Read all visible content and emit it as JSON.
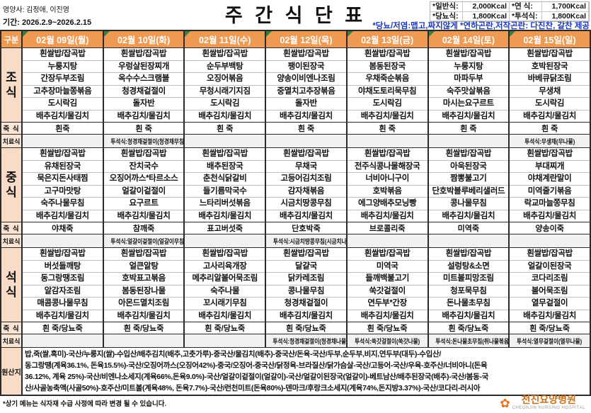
{
  "header": {
    "nutritionist": "영양사: 김정애, 이진영",
    "period": "기간: 2026.2.9~2026.2.15",
    "title": "주 간 식 단 표",
    "kcal": [
      {
        "label": "*일반식:",
        "value": "2,000Kcal"
      },
      {
        "label": "*연  식:",
        "value": "1,700Kcal"
      },
      {
        "label": "*당뇨식:",
        "value": "1,800Kcal"
      },
      {
        "label": "*투석식:",
        "value": "1,800Kcal"
      }
    ],
    "note": "*당뇨/저염:맵고,짜지않게  *연하곤란,저작곤란: 다진찬, 갈찬 제공"
  },
  "table": {
    "corner_label": "구분",
    "day_headers": [
      "02월 09일(월)",
      "02월 10일(화)",
      "02월 11일(수)",
      "02월 12일(목)",
      "02월 13일(금)",
      "02월 14일(토)",
      "02월 15일(일)"
    ],
    "section_labels": {
      "breakfast": "조식",
      "lunch": "중식",
      "dinner": "석식"
    },
    "porridge_label": "죽 식",
    "therapy_label": "치료식",
    "origin_label": "원산지"
  },
  "days": [
    {
      "breakfast": [
        "흰쌀밥/잡곡밥",
        "누룽지탕",
        "간장두부조림",
        "고추장마늘쫑볶음",
        "도시락김",
        "배추김치/물김치"
      ],
      "breakfast_porridge": "흰죽",
      "breakfast_therapy": "",
      "lunch": [
        "흰쌀밥/잡곡밥",
        "유채된장국",
        "묵은지돈사태찜",
        "고구마맛탕",
        "숙주나물무침",
        "배추김치/물김치"
      ],
      "lunch_porridge": "야채죽",
      "lunch_therapy": "",
      "dinner": [
        "흰쌀밥/잡곡밥",
        "버섯들깨탕",
        "동그랑땡조림",
        "알감자조림",
        "매콤콩나물무침",
        "배추김치/물김치"
      ],
      "dinner_porridge": "흰 죽/당뇨죽",
      "dinner_therapy": ""
    },
    {
      "breakfast": [
        "흰쌀밥/잡곡밥",
        "우렁살된장찌개",
        "옥수수스크램블",
        "청경채겉절이",
        "돌자반",
        "배추김치/물김치"
      ],
      "breakfast_porridge": "흰 죽",
      "breakfast_therapy": "투석식:청경채겉절이(청경채무침)",
      "lunch": [
        "흰쌀밥/잡곡밥",
        "잔치국수",
        "오징어까스*타르소스",
        "얼갈이겉절이",
        "요구르트",
        "배추김치/물김치"
      ],
      "lunch_porridge": "참깨죽",
      "lunch_therapy": "투석식:얼갈이겉절이(얼갈이무침)",
      "dinner": [
        "흰쌀밥/잡곡밥",
        "얼큰알탕",
        "호박표고볶음",
        "봄동된장나물",
        "아몬드멸치조림",
        "배추김치/물김치"
      ],
      "dinner_porridge": "흰 죽/당뇨죽",
      "dinner_therapy": ""
    },
    {
      "breakfast": [
        "흰쌀밥/잡곡밥",
        "순두부백탕",
        "오징어볶음",
        "무청시래기지짐",
        "도시락김",
        "배추김치/물김치"
      ],
      "breakfast_porridge": "흰 죽",
      "breakfast_therapy": "",
      "lunch": [
        "흰쌀밥/잡곡밥",
        "배추된장국",
        "춘천식닭갈비",
        "들기름막국수",
        "느타리버섯볶음",
        "배추김치/물김치"
      ],
      "lunch_porridge": "표고버섯죽",
      "lunch_therapy": "",
      "dinner": [
        "흰쌀밥/잡곡밥",
        "고사리육개장",
        "메추리알볼어묵조림",
        "숙주나물",
        "꼬시래기무침",
        "배추김치/물김치"
      ],
      "dinner_porridge": "흰 죽/당뇨죽",
      "dinner_therapy": ""
    },
    {
      "breakfast": [
        "흰쌀밥/잡곡밥",
        "팽이된장국",
        "양송이비엔나조림",
        "중멸치고추장볶음",
        "돌자반",
        "배추김치/물김치"
      ],
      "breakfast_porridge": "흰 죽",
      "breakfast_therapy": "",
      "lunch": [
        "흰쌀밥/잡곡밥",
        "무채국",
        "고등어김치조림",
        "감자채볶음",
        "시금치땅콩무침",
        "배추김치/물김치"
      ],
      "lunch_porridge": "단호박죽",
      "lunch_therapy": "투석식:시금치땅콩무침(시금치나물)",
      "dinner": [
        "흰쌀밥/잡곡밥",
        "달걀국",
        "닭카레조림",
        "콩나물무침",
        "청경채겉절이",
        "배추김치/물김치"
      ],
      "dinner_porridge": "흰 죽/당뇨죽",
      "dinner_therapy": "투석식:청경채겉절이(청경채나물)"
    },
    {
      "breakfast": [
        "흰쌀밥/잡곡밥",
        "봄동된장국",
        "우채죽순볶음",
        "야채도토리묵무침",
        "도시락김",
        "배추김치/물김치"
      ],
      "breakfast_porridge": "흰 죽",
      "breakfast_therapy": "",
      "lunch": [
        "흰쌀밥/잡곡밥",
        "전주식콩나물해장국",
        "너비아니구이",
        "호박볶음",
        "에그양배추모닝빵",
        "배추김치/물김치"
      ],
      "lunch_porridge": "브로콜리죽",
      "lunch_therapy": "",
      "dinner": [
        "흰쌀밥/잡곡밥",
        "미역국",
        "들깨백불고기",
        "쑥갓겉절이",
        "연두부*간장",
        "배추김치/물김치"
      ],
      "dinner_porridge": "흰 죽/당뇨죽",
      "dinner_therapy": "투석식:쑥갓걸절이(쑥갓나물)"
    },
    {
      "breakfast": [
        "흰쌀밥/잡곡밥",
        "누룽지탕",
        "마파두부",
        "숙주맛살볶음",
        "마시는요구르트",
        "배추김치/물김치"
      ],
      "breakfast_porridge": "흰 죽",
      "breakfast_therapy": "",
      "lunch": [
        "흰쌀밥/잡곡밥",
        "아욱된장국",
        "짬뽕불고기",
        "단호박블루베리샐러드",
        "콩나물무침",
        "배추김치/물김치"
      ],
      "lunch_porridge": "미역죽",
      "lunch_therapy": "",
      "dinner": [
        "흰쌀밥/잡곡밥",
        "설렁탕&소면",
        "미트볼피망조림",
        "청포묵무침",
        "돈나물초무침",
        "배추김치/물김치"
      ],
      "dinner_porridge": "흰 죽/당뇨죽",
      "dinner_therapy": "투석식:돈나물초무침(취나물볶음)"
    },
    {
      "breakfast": [
        "흰쌀밥/잡곡밥",
        "호박된장국",
        "바베큐닭조림",
        "무생채",
        "도시락김",
        "배추김치/물김치"
      ],
      "breakfast_porridge": "흰 죽",
      "breakfast_therapy": "투석식:무생채(무나물)",
      "lunch": [
        "흰쌀밥/잡곡밥",
        "부대찌개",
        "야채계란말이",
        "미역줄기볶음",
        "락교마늘쫑무침",
        "배추김치/물김치"
      ],
      "lunch_porridge": "양송이죽",
      "lunch_therapy": "",
      "dinner": [
        "흰쌀밥/잡곡밥",
        "얼갈이된장국",
        "코다리조림",
        "볼어묵조림",
        "열무겉절이",
        "배추김치/물김치"
      ],
      "dinner_porridge": "흰 죽/당뇨죽",
      "dinner_therapy": "투석식:열무겉절이(열무나물)"
    }
  ],
  "origin_lines": [
    "밥,죽(쌀,흑미)-국산/누룽지(쌀)-수입산/배추김치(배추,고춧가루)-중국산/물김치(배추)-중국산/돈육-국산/두부,순두부,비지,연두부(대두)-수입산/",
    "동그랑땡(계육36.1%, 돈육15.5%)-국산/오징어까스(오징어42%)-중국/오징어-중국산/닭정육-브라질산/닭가슴살-국산/고등어-국산/우육-호주산/너비아니(돈육",
    "36.12%, 계육 25%)-국산/비엔나소세지(계육66%,돈육9.0%)-국산/얼갈이겉절이(얼갈이)-국산/얼갈이된장국(얼갈이)-베트남산/배추된장국(배추)-국산/봄동-국",
    "산/사골농축액(사골50%)-호주산/미트볼(계육48%, 돈육7.7%)-국산/런천미트(돈육80%)-덴마크/후랑크소세지(계육74%,돈지방3.37%)-국산/코다리-러시아"
  ],
  "footnote": "*상기 메뉴는 식자재 수급 사정에 따라 변경 될 수 있습니다.",
  "logo": {
    "flower": "✿",
    "name": "천진요양병원",
    "sub": "CHEONJIN NURSING HOSPITAL"
  },
  "colors": {
    "accent_orange": "#EF9A52",
    "note_blue": "#1C39BB",
    "triangle_green": "#3B7D3B",
    "logo_orange": "#E8731A"
  }
}
